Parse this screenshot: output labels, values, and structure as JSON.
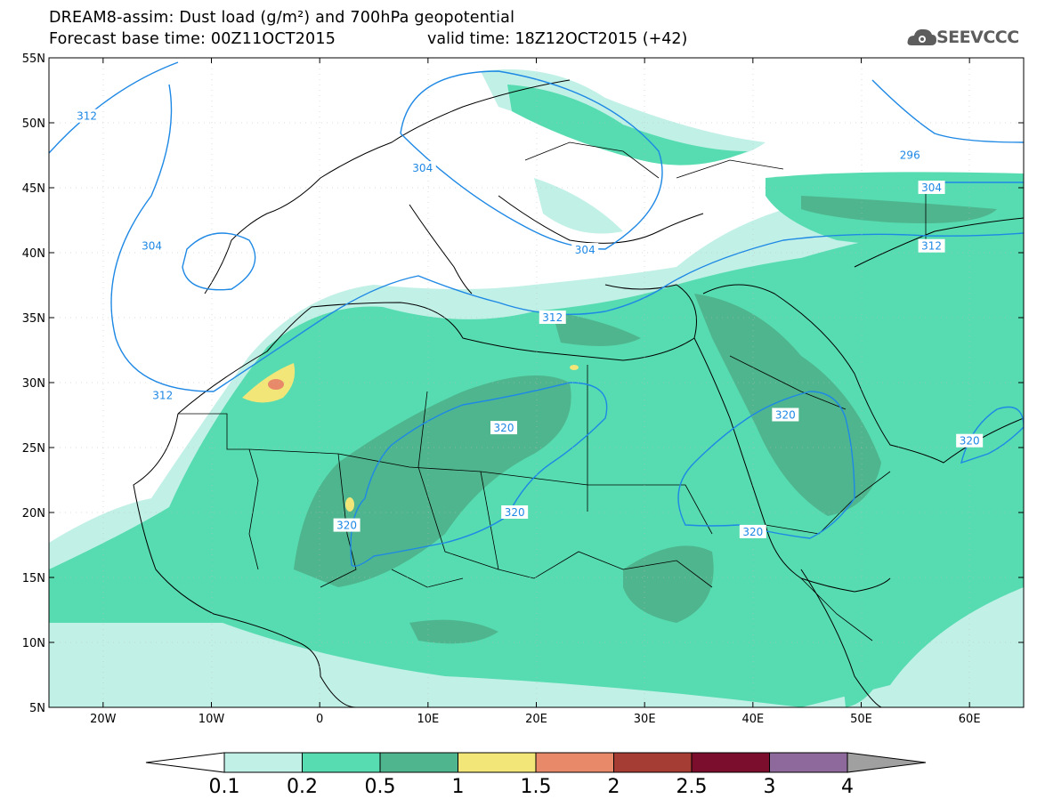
{
  "title": {
    "line1": "DREAM8-assim: Dust load (g/m²) and 700hPa geopotential",
    "line2_left": "Forecast base time: 00Z11OCT2015",
    "line2_right": "valid time: 18Z12OCT2015 (+42)"
  },
  "logo": {
    "text": "SEEVCCC",
    "icon": "cloud-gear-icon"
  },
  "map": {
    "lon_range": [
      -25,
      65
    ],
    "lat_range": [
      5,
      55
    ],
    "lat_ticks": [
      {
        "value": 55,
        "label": "55N"
      },
      {
        "value": 50,
        "label": "50N"
      },
      {
        "value": 45,
        "label": "45N"
      },
      {
        "value": 40,
        "label": "40N"
      },
      {
        "value": 35,
        "label": "35N"
      },
      {
        "value": 30,
        "label": "30N"
      },
      {
        "value": 25,
        "label": "25N"
      },
      {
        "value": 20,
        "label": "20N"
      },
      {
        "value": 15,
        "label": "15N"
      },
      {
        "value": 10,
        "label": "10N"
      },
      {
        "value": 5,
        "label": "5N"
      }
    ],
    "lon_ticks": [
      {
        "value": -20,
        "label": "20W"
      },
      {
        "value": -10,
        "label": "10W"
      },
      {
        "value": 0,
        "label": "0"
      },
      {
        "value": 10,
        "label": "10E"
      },
      {
        "value": 20,
        "label": "20E"
      },
      {
        "value": 30,
        "label": "30E"
      },
      {
        "value": 40,
        "label": "40E"
      },
      {
        "value": 50,
        "label": "50E"
      },
      {
        "value": 60,
        "label": "60E"
      }
    ],
    "contour_labels": [
      {
        "text": "312",
        "lon": -21.5,
        "lat": 50.5
      },
      {
        "text": "304",
        "lon": 9.5,
        "lat": 46.5
      },
      {
        "text": "304",
        "lon": -15.5,
        "lat": 40.5
      },
      {
        "text": "304",
        "lon": 24.5,
        "lat": 40.2
      },
      {
        "text": "312",
        "lon": 21.5,
        "lat": 35.0
      },
      {
        "text": "312",
        "lon": -14.5,
        "lat": 29.0
      },
      {
        "text": "320",
        "lon": 17.0,
        "lat": 26.5
      },
      {
        "text": "320",
        "lon": 43.0,
        "lat": 27.5
      },
      {
        "text": "320",
        "lon": 60.0,
        "lat": 25.5
      },
      {
        "text": "320",
        "lon": 18.0,
        "lat": 20.0
      },
      {
        "text": "320",
        "lon": 2.5,
        "lat": 19.0
      },
      {
        "text": "320",
        "lon": 40.0,
        "lat": 18.5
      },
      {
        "text": "296",
        "lon": 54.5,
        "lat": 47.5
      },
      {
        "text": "304",
        "lon": 56.5,
        "lat": 45.0
      },
      {
        "text": "312",
        "lon": 56.5,
        "lat": 40.5
      }
    ]
  },
  "colorbar": {
    "labels": [
      "0.1",
      "0.2",
      "0.5",
      "1",
      "1.5",
      "2",
      "2.5",
      "3",
      "4"
    ],
    "colors": [
      "#c1f0e6",
      "#56dcb0",
      "#4fb58e",
      "#f2e679",
      "#e8896a",
      "#a63d35",
      "#7a0e2c",
      "#8e6a9c"
    ],
    "below_color": "#ffffff",
    "above_color": "#a0a0a0"
  }
}
